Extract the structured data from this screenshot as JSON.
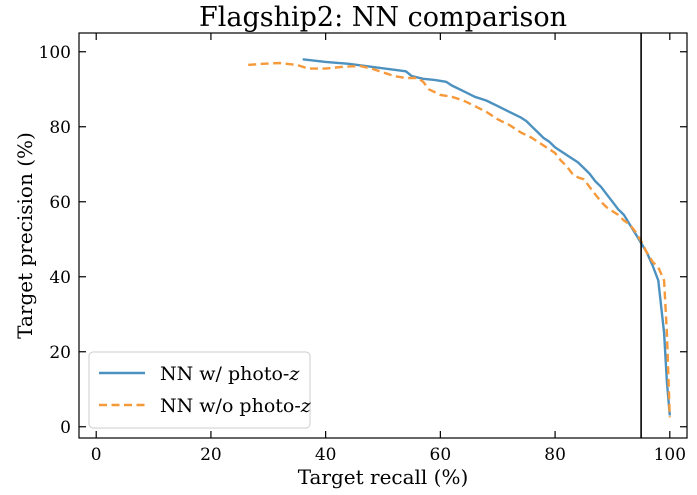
{
  "chart_data": {
    "type": "line",
    "title": "Flagship2: NN comparison",
    "xlabel": "Target recall (%)",
    "ylabel": "Target precision (%)",
    "xlim": [
      -3,
      103
    ],
    "ylim": [
      -3,
      105
    ],
    "xticks": [
      0,
      20,
      40,
      60,
      80,
      100
    ],
    "yticks": [
      0,
      20,
      40,
      60,
      80,
      100
    ],
    "legend_position": "lower-left",
    "reference_line": {
      "orientation": "vertical",
      "x": 95,
      "color": "#000000"
    },
    "series": [
      {
        "name": "NN w/ photo-z",
        "legend_label": "NN w/ photo-",
        "legend_italic": "z",
        "color": "#4c91c0",
        "style": "solid",
        "x": [
          36,
          40,
          44,
          48,
          52,
          54,
          55,
          57,
          59,
          61,
          62,
          64,
          66,
          68,
          70,
          72,
          74,
          75,
          76,
          77,
          78,
          79,
          80,
          81,
          82,
          84,
          85,
          86,
          87,
          88,
          89,
          90,
          91,
          92,
          93,
          94,
          95,
          96,
          97,
          98,
          99,
          99.5,
          100
        ],
        "y": [
          98,
          97.3,
          96.8,
          96,
          95.2,
          94.8,
          93.5,
          92.8,
          92.5,
          92,
          91,
          89.5,
          88,
          87,
          85.5,
          84,
          82.5,
          81.5,
          80,
          78.5,
          77,
          76,
          74.5,
          73.5,
          72.5,
          70.5,
          69,
          67.5,
          65.5,
          64,
          62,
          60,
          58,
          56.5,
          54,
          51.5,
          49,
          46.5,
          43,
          39,
          25,
          12,
          3
        ]
      },
      {
        "name": "NN w/o photo-z",
        "legend_label": "NN w/o photo-",
        "legend_italic": "z",
        "color": "#f6993b",
        "style": "dashed",
        "x": [
          26.5,
          29,
          32,
          35,
          37,
          40,
          43,
          46,
          48,
          50,
          52,
          54,
          56,
          57,
          58,
          60,
          62,
          64,
          66,
          68,
          70,
          72,
          74,
          76,
          78,
          80,
          81,
          82,
          83,
          84,
          85,
          86,
          87,
          88,
          89,
          90,
          91,
          92,
          93,
          94,
          95,
          96,
          97,
          98,
          99,
          99.5,
          100
        ],
        "y": [
          96.5,
          96.8,
          97,
          96.5,
          95.5,
          95.5,
          96,
          96.2,
          95.5,
          94.5,
          93.5,
          93,
          93,
          92,
          90,
          88.5,
          88,
          87,
          85.5,
          84,
          82,
          80.5,
          78.5,
          77,
          75,
          73,
          71,
          69.5,
          67.5,
          66.5,
          66,
          64,
          62,
          60,
          58.5,
          57.5,
          56.5,
          55,
          54,
          52,
          49.5,
          46.5,
          44,
          42.5,
          39,
          25,
          2.5
        ]
      }
    ]
  }
}
